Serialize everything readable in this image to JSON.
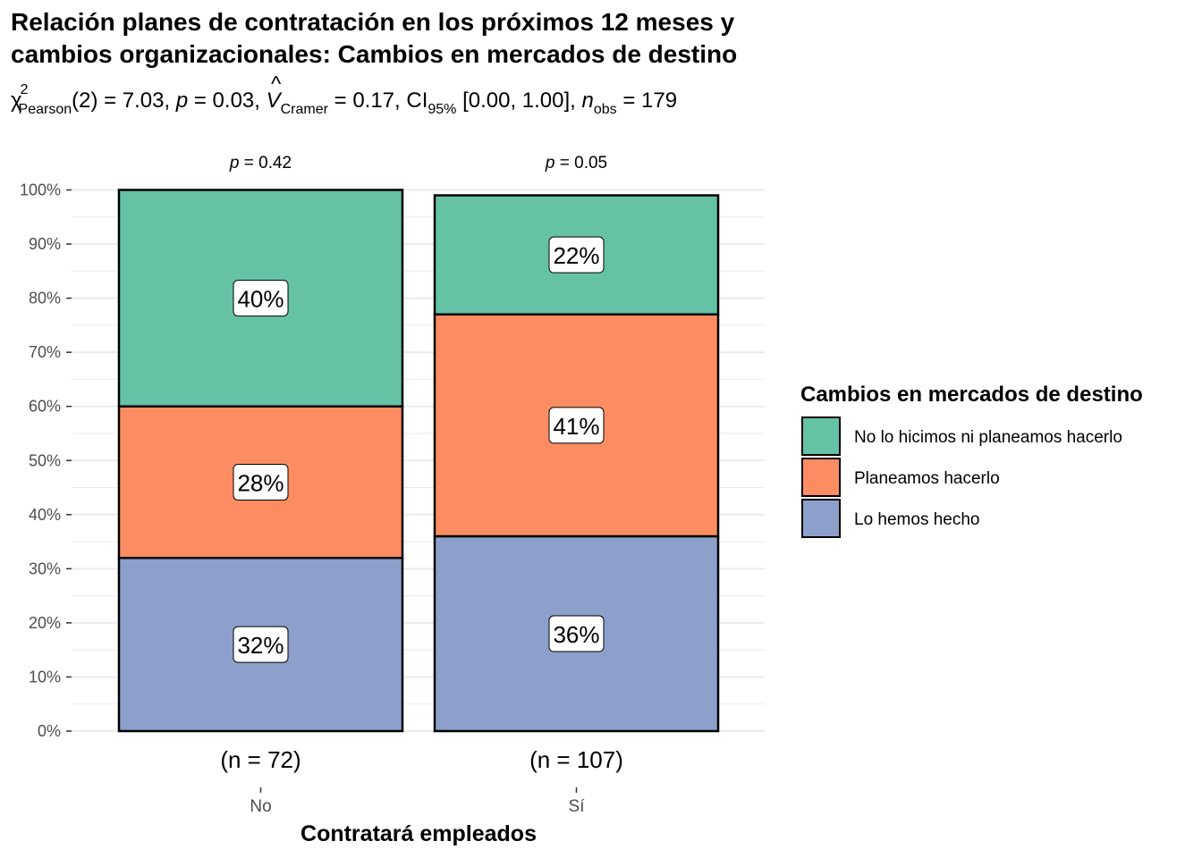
{
  "title_line1": "Relación planes de contratación en los próximos 12 meses y",
  "title_line2": "cambios organizacionales: Cambios en mercados de destino",
  "stats": {
    "chi_sym": "χ",
    "chi_sup": "2",
    "chi_sub": "Pearson",
    "chi_val": "(2) = 7.03, ",
    "p_sym": "p",
    "p_val": " = 0.03, ",
    "v_sym": "V",
    "v_hat": "^",
    "v_sub": "Cramer",
    "v_val": " = 0.17, CI",
    "ci_sub": "95%",
    "ci_val": " [0.00, 1.00], ",
    "n_sym": "n",
    "n_sub": "obs",
    "n_val": " = 179"
  },
  "chart_data": {
    "type": "bar",
    "stacked": true,
    "normalized": true,
    "xlabel": "Contratará empleados",
    "ylabel": "",
    "ylim": [
      0,
      100
    ],
    "yticks": [
      "0%",
      "10%",
      "20%",
      "30%",
      "40%",
      "50%",
      "60%",
      "70%",
      "80%",
      "90%",
      "100%"
    ],
    "grid": true,
    "legend_position": "right",
    "categories": [
      "No",
      "Sí"
    ],
    "n_labels": [
      "(n = 72)",
      "(n = 107)"
    ],
    "p_labels": [
      {
        "sym": "p",
        "val": " = 0.42"
      },
      {
        "sym": "p",
        "val": " = 0.05"
      }
    ],
    "legend_title": "Cambios en mercados de destino",
    "series": [
      {
        "name": "Lo hemos hecho",
        "color": "#8DA0CB",
        "values": [
          32,
          36
        ],
        "labels": [
          "32%",
          "36%"
        ]
      },
      {
        "name": "Planeamos hacerlo",
        "color": "#FC8D62",
        "values": [
          28,
          41
        ],
        "labels": [
          "28%",
          "41%"
        ]
      },
      {
        "name": "No lo hicimos ni planeamos hacerlo",
        "color": "#66C2A5",
        "values": [
          40,
          22
        ],
        "labels": [
          "40%",
          "22%"
        ]
      }
    ],
    "legend_order": [
      "No lo hicimos ni planeamos hacerlo",
      "Planeamos hacerlo",
      "Lo hemos hecho"
    ]
  }
}
